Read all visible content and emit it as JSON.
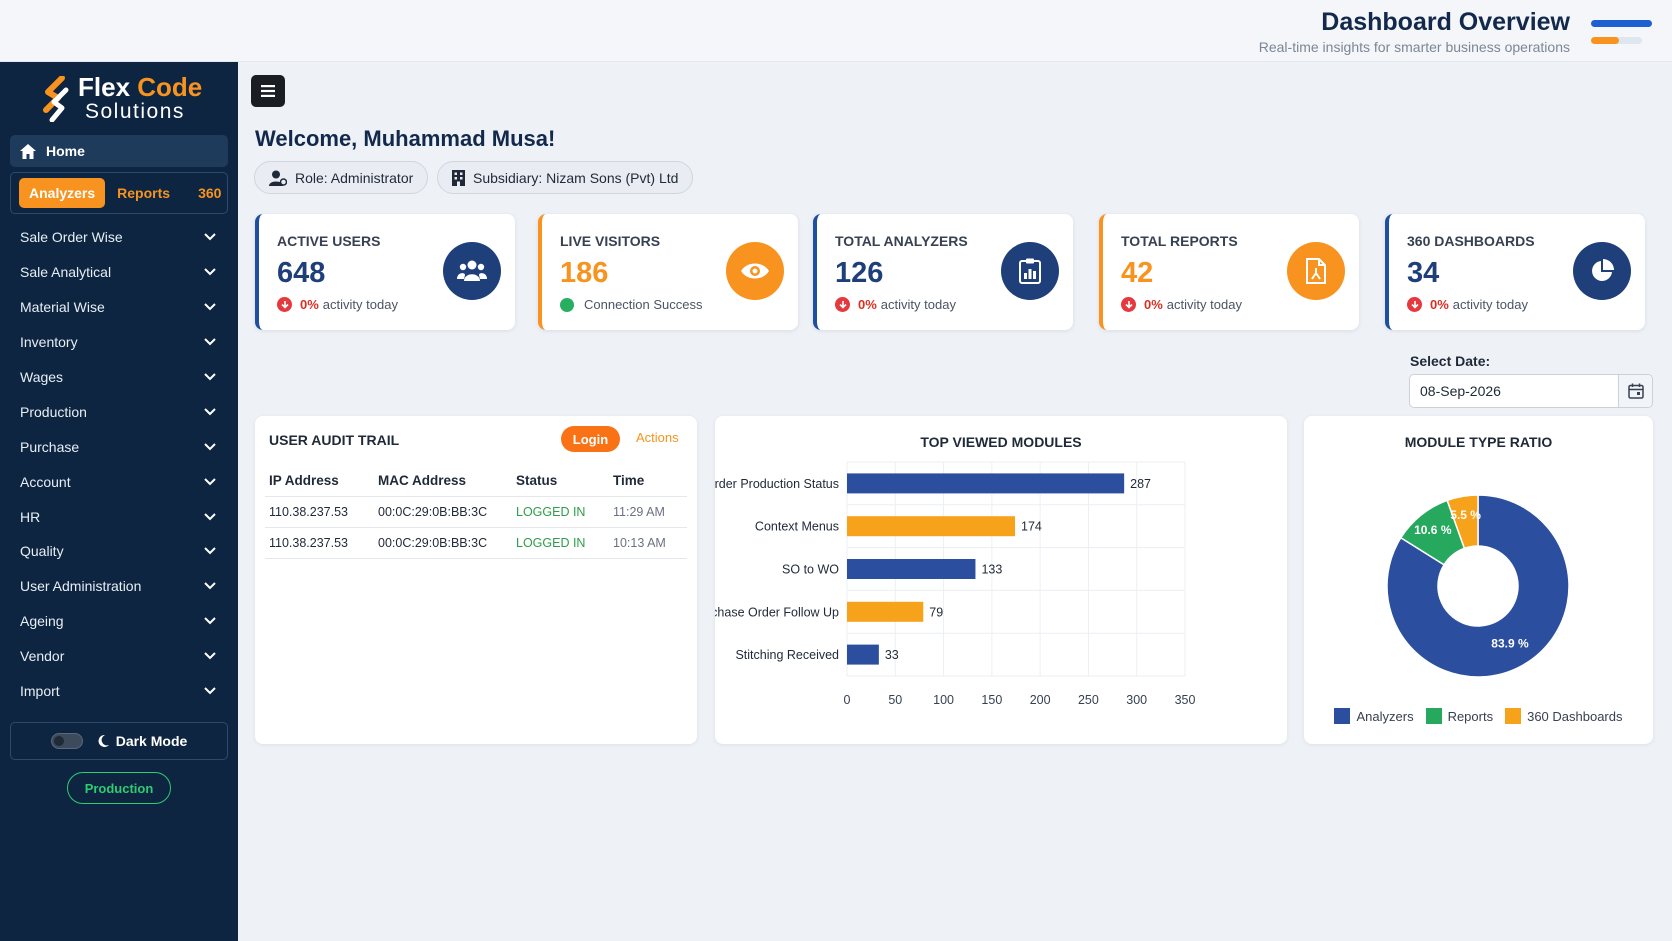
{
  "header": {
    "title": "Dashboard Overview",
    "subtitle": "Real-time insights for smarter business operations"
  },
  "brand": {
    "name_part1": "Flex",
    "name_part2": "Code",
    "name_line2": "Solutions",
    "colors": {
      "navy": "#0d2540",
      "orange": "#f7931e",
      "blue": "#1f4fa0",
      "green": "#27ae60"
    }
  },
  "sidebar": {
    "home_label": "Home",
    "tabs": {
      "analyzers": "Analyzers",
      "reports": "Reports",
      "t360": "360"
    },
    "items": [
      {
        "label": "Sale Order Wise"
      },
      {
        "label": "Sale Analytical"
      },
      {
        "label": "Material Wise"
      },
      {
        "label": "Inventory"
      },
      {
        "label": "Wages"
      },
      {
        "label": "Production"
      },
      {
        "label": "Purchase"
      },
      {
        "label": "Account"
      },
      {
        "label": "HR"
      },
      {
        "label": "Quality"
      },
      {
        "label": "User Administration"
      },
      {
        "label": "Ageing"
      },
      {
        "label": "Vendor"
      },
      {
        "label": "Import"
      }
    ],
    "dark_mode_label": "Dark Mode",
    "environment_label": "Production"
  },
  "main": {
    "welcome": "Welcome, Muhammad Musa!",
    "role_chip": "Role: Administrator",
    "subsidiary_chip": "Subsidiary: Nizam Sons (Pvt) Ltd"
  },
  "stats": [
    {
      "label": "ACTIVE USERS",
      "value": "648",
      "pct": "0%",
      "foot": "activity today",
      "icon": "users-icon"
    },
    {
      "label": "LIVE VISITORS",
      "value": "186",
      "foot": "Connection Success",
      "icon": "eye-icon"
    },
    {
      "label": "TOTAL ANALYZERS",
      "value": "126",
      "pct": "0%",
      "foot": "activity today",
      "icon": "clipboard-chart-icon"
    },
    {
      "label": "TOTAL REPORTS",
      "value": "42",
      "pct": "0%",
      "foot": "activity today",
      "icon": "pdf-file-icon"
    },
    {
      "label": "360 DASHBOARDS",
      "value": "34",
      "pct": "0%",
      "foot": "activity today",
      "icon": "pie-chart-icon"
    }
  ],
  "date_picker": {
    "label": "Select Date:",
    "value": "08-Sep-2026"
  },
  "audit": {
    "title": "USER AUDIT TRAIL",
    "login_tab": "Login",
    "actions_tab": "Actions",
    "columns": [
      "IP Address",
      "MAC Address",
      "Status",
      "Time"
    ],
    "rows": [
      [
        "110.38.237.53",
        "00:0C:29:0B:BB:3C",
        "LOGGED IN",
        "11:29 AM"
      ],
      [
        "110.38.237.53",
        "00:0C:29:0B:BB:3C",
        "LOGGED IN",
        "10:13 AM"
      ]
    ]
  },
  "chart_data": [
    {
      "type": "bar",
      "orientation": "horizontal",
      "title": "TOP VIEWED MODULES",
      "categories": [
        "Sale Order Production Status",
        "Context Menus",
        "SO to WO",
        "Purchase Order Follow Up",
        "Stitching Received"
      ],
      "values": [
        287,
        174,
        133,
        79,
        33
      ],
      "colors": [
        "#2b4f9e",
        "#f7a21b",
        "#2b4f9e",
        "#f7a21b",
        "#2b4f9e"
      ],
      "xlim": [
        0,
        350
      ],
      "xticks": [
        0,
        50,
        100,
        150,
        200,
        250,
        300,
        350
      ],
      "grid": true
    },
    {
      "type": "pie",
      "title": "MODULE TYPE RATIO",
      "labels": [
        "Analyzers",
        "Reports",
        "360 Dashboards"
      ],
      "values": [
        83.9,
        10.6,
        5.5
      ],
      "value_labels": [
        "83.9 %",
        "10.6 %",
        "5.5 %"
      ],
      "colors": [
        "#2b4f9e",
        "#27a85f",
        "#f7a21b"
      ],
      "legend": "bottom"
    }
  ]
}
